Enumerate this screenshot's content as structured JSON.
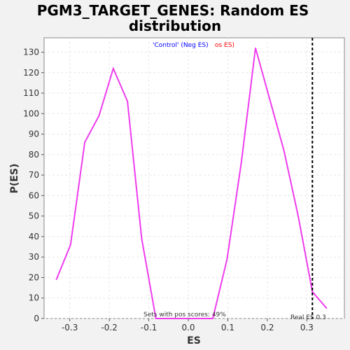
{
  "chart_data": {
    "type": "line",
    "title_line1": "PGM3_TARGET_GENES: Random ES",
    "title_line2": "distribution",
    "xlabel": "ES",
    "ylabel": "P(ES)",
    "xlim": [
      -0.365,
      0.395
    ],
    "ylim": [
      0,
      137
    ],
    "x_ticks": [
      -0.3,
      -0.2,
      -0.1,
      0.0,
      0.1,
      0.2,
      0.3
    ],
    "x_tick_labels": [
      "-0.3",
      "-0.2",
      "-0.1",
      "0.0",
      "0.1",
      "0.2",
      "0.3"
    ],
    "y_ticks": [
      0,
      10,
      20,
      30,
      40,
      50,
      60,
      70,
      80,
      90,
      100,
      110,
      120,
      130
    ],
    "y_tick_labels": [
      "0",
      "10",
      "20",
      "30",
      "40",
      "50",
      "60",
      "70",
      "80",
      "90",
      "100",
      "110",
      "120",
      "130"
    ],
    "grid": true,
    "series": [
      {
        "color": "#ee3cee",
        "x": [
          -0.334,
          -0.298,
          -0.262,
          -0.226,
          -0.19,
          -0.154,
          -0.118,
          -0.082,
          -0.046,
          -0.01,
          0.026,
          0.062,
          0.098,
          0.134,
          0.17,
          0.206,
          0.242,
          0.278,
          0.314,
          0.35
        ],
        "y": [
          19,
          36,
          86,
          99,
          122,
          106,
          39,
          0,
          0,
          0,
          0,
          0,
          29,
          76,
          132,
          107,
          82,
          50,
          13,
          5
        ]
      }
    ],
    "annotations": {
      "legend_control": "'Control' (Neg ES)",
      "legend_pos": "os ES)",
      "pos_scores": "Sets with pos scores: 49%",
      "real_es": "Real ES 0.3"
    },
    "real_es_value": 0.314,
    "colors": {
      "background": "#f2f2f2",
      "plot_bg": "#ffffff",
      "line": "#ee3cee",
      "control": "#0000ff",
      "pos": "#ff0000",
      "grid": "#e6e6e6"
    }
  }
}
